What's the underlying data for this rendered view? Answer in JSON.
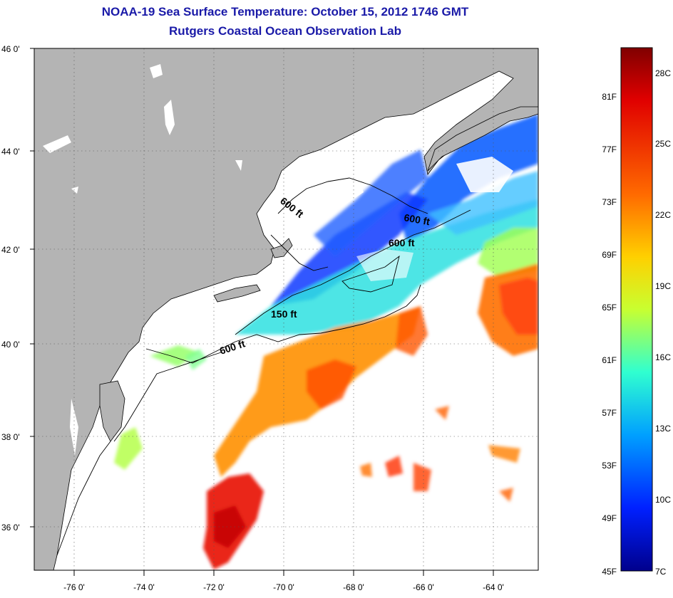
{
  "title": {
    "line1": "NOAA-19 Sea Surface Temperature:  October 15, 2012 1746 GMT",
    "line2": "Rutgers Coastal Ocean Observation Lab"
  },
  "map": {
    "lat_labels": [
      "46 0'",
      "44 0'",
      "42 0'",
      "40 0'",
      "38 0'",
      "36 0'"
    ],
    "lon_labels": [
      "-76 0'",
      "-74 0'",
      "-72 0'",
      "-70 0'",
      "-68 0'",
      "-66 0'",
      "-64 0'"
    ],
    "contour_labels": [
      "600 ft",
      "600 ft",
      "600 ft",
      "150 ft",
      "600 ft"
    ],
    "colors": {
      "land": "#b4b4b4",
      "cloud": "#ffffff",
      "coastline": "#000000"
    }
  },
  "colorbar": {
    "fahrenheit_labels": [
      "81F",
      "77F",
      "73F",
      "69F",
      "65F",
      "61F",
      "57F",
      "53F",
      "49F",
      "45F"
    ],
    "celsius_labels": [
      "28C",
      "25C",
      "22C",
      "19C",
      "16C",
      "13C",
      "10C",
      "7C"
    ],
    "stops": [
      "#800000",
      "#e00000",
      "#ff6a00",
      "#ffd000",
      "#c8ff30",
      "#30ffd0",
      "#00a0ff",
      "#0020ff",
      "#00008c"
    ]
  }
}
